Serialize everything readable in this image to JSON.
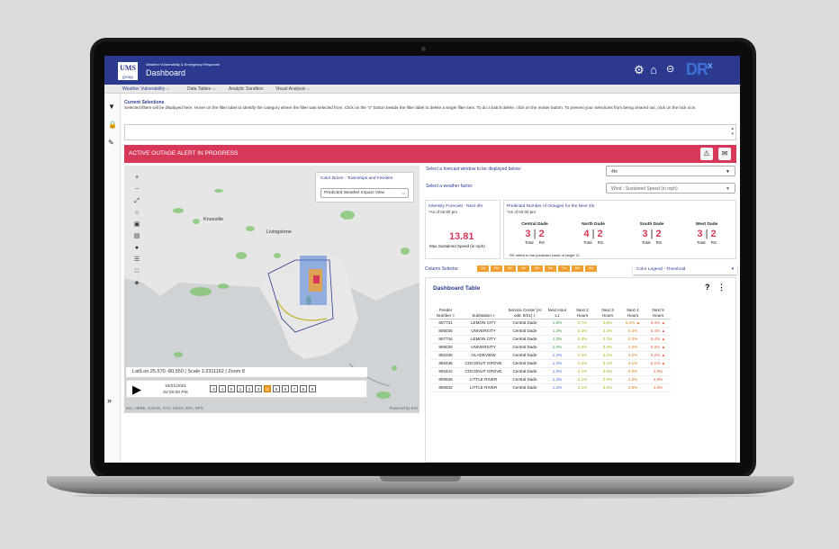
{
  "header": {
    "logo_line1": "UMS",
    "logo_line2": "group",
    "subtitle": "Weather Vulnerability & Emergency Response",
    "title": "Dashboard",
    "brand": "DR",
    "brand_sup": "x"
  },
  "menu": {
    "items": [
      {
        "label": "Weather Vulnerability ⌵"
      },
      {
        "label": "Data Tables ⌵"
      },
      {
        "label": "Analytic Sandbox"
      },
      {
        "label": "Visual Analysis ⌵"
      }
    ]
  },
  "current_selections": {
    "title": "Current Selections",
    "help": "Selected filters will be displayed here. Hover on the filter label to identify the category where the filter was selected from. Click on the \"x\" button beside the filter label to delete a single filter item. To do a batch delete, click on the eraser button. To prevent your selections from being cleared out, click on the lock icon."
  },
  "alert": {
    "text": "ACTIVE OUTAGE ALERT IN PROGRESS"
  },
  "map": {
    "color_driver_title": "Color Driver - Townships and Feeders",
    "color_driver_value": "Predicted Weather Impact View",
    "cities": [
      {
        "name": "Knoxville"
      },
      {
        "name": "Livingstone"
      }
    ],
    "latlon": "Lat/Lon 25.570 -80.550 | Scale 1:2311162 | Zoom 8",
    "player_date": "10/21/2021",
    "player_time": "02:00:00 PM",
    "steps": [
      "-2",
      "-1",
      "0",
      "1",
      "2",
      "3",
      "4",
      "5",
      "6",
      "7",
      "8",
      "9"
    ],
    "active_step": "4",
    "attribution": "Esri, HERE, Garmin, FAO, USGS, EPA, NPS",
    "powered_by": "Powered by Esri"
  },
  "controls": {
    "forecast_label": "Select a forecast window to be displayed below:",
    "forecast_value": "4hr",
    "factor_label": "Select a weather factor:",
    "factor_value": "Wind - Sustained Speed (in mph)"
  },
  "intensity": {
    "title": "Intensity Forecast - Next 4hr",
    "asof": "*As of 02:00 pm",
    "value": "13.81",
    "label": "Max Sustained Speed (in mph)"
  },
  "predicted": {
    "title": "Predicted Number of Outages for the Next 4hr",
    "asof": "*As of 02:00 pm",
    "regions": [
      {
        "name": "Central Dade",
        "total": "3",
        "rs": "2"
      },
      {
        "name": "North Dade",
        "total": "4",
        "rs": "2"
      },
      {
        "name": "South Dade",
        "total": "3",
        "rs": "2"
      },
      {
        "name": "West Dade",
        "total": "3",
        "rs": "2"
      }
    ],
    "total_label": "Total",
    "rs_label": "RS",
    "note": "RS refers to the predicted count of single Cl."
  },
  "column_selector": {
    "label": "Column Selector",
    "chips": [
      "1hr",
      "2hr",
      "3hr",
      "4hr",
      "5hr",
      "6hr",
      "7hr",
      "8hr",
      "9hr"
    ]
  },
  "color_legend": "Color Legend - Threshold",
  "table": {
    "title": "Dashboard Table",
    "headers": [
      "Feeder Number",
      "Substation",
      "Service Center [AI edit. 9/21]",
      "Next Hour L1",
      "Next 2 Hours",
      "Next 3 Hours",
      "Next 4 Hours",
      "Next 5 Hours"
    ],
    "rows": [
      [
        "807731",
        "LEMON CITY",
        "Central Dade",
        "1.5%",
        "2.7%",
        "3.8%",
        "5.2%",
        "6.4%"
      ],
      [
        "805035",
        "UNIVERSITY",
        "Central Dade",
        "1.3%",
        "2.3%",
        "3.3%",
        "4.4%",
        "5.4%"
      ],
      [
        "807734",
        "LEMON CITY",
        "Central Dade",
        "1.3%",
        "2.3%",
        "3.3%",
        "4.3%",
        "5.4%"
      ],
      [
        "805036",
        "UNIVERSITY",
        "Central Dade",
        "1.3%",
        "2.3%",
        "3.2%",
        "4.2%",
        "5.3%"
      ],
      [
        "802235",
        "GLADEVIEW",
        "Central Dade",
        "1.2%",
        "2.2%",
        "3.2%",
        "4.2%",
        "5.2%"
      ],
      [
        "800436",
        "COCONUT GROVE",
        "Central Dade",
        "1.2%",
        "2.2%",
        "3.1%",
        "4.1%",
        "5.1%"
      ],
      [
        "800442",
        "COCONUT GROVE",
        "Central Dade",
        "1.2%",
        "2.1%",
        "3.0%",
        "4.0%",
        "4.9%"
      ],
      [
        "800638",
        "LITTLE RIVER",
        "Central Dade",
        "1.2%",
        "2.1%",
        "3.0%",
        "4.0%",
        "4.9%"
      ],
      [
        "800632",
        "LITTLE RIVER",
        "Central Dade",
        "1.2%",
        "2.1%",
        "3.0%",
        "3.9%",
        "4.8%"
      ]
    ],
    "warn_cols_rows": [
      [
        6,
        0
      ],
      [
        7,
        0
      ],
      [
        7,
        1
      ],
      [
        7,
        2
      ],
      [
        7,
        3
      ],
      [
        7,
        4
      ],
      [
        7,
        5
      ]
    ]
  },
  "colors": {
    "header_bg": "#2b3a8f",
    "alert_bg": "#d7385a",
    "accent_orange": "#f0a030"
  }
}
